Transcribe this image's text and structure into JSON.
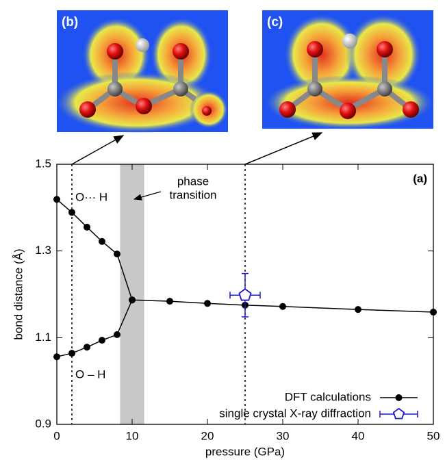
{
  "chart_data": {
    "type": "line",
    "xlabel": "pressure (GPa)",
    "ylabel": "bond distance (Å)",
    "xlim": [
      0,
      50
    ],
    "ylim": [
      0.9,
      1.5
    ],
    "xticks": [
      0,
      10,
      20,
      30,
      40,
      50
    ],
    "yticks": [
      0.9,
      1.1,
      1.3,
      1.5
    ],
    "series": [
      {
        "name": "DFT calculations",
        "color": "#000000",
        "x": [
          0,
          2,
          4,
          6,
          8,
          10,
          15,
          20,
          25,
          30,
          40,
          50
        ],
        "values": [
          1.419,
          1.389,
          1.355,
          1.322,
          1.293,
          1.187,
          1.184,
          1.179,
          1.175,
          1.172,
          1.165,
          1.159
        ]
      },
      {
        "color": "#000000",
        "x": [
          0,
          2,
          4,
          6,
          8,
          10
        ],
        "values": [
          1.056,
          1.064,
          1.078,
          1.094,
          1.107,
          1.187
        ]
      }
    ],
    "measurement": {
      "name": "single crystal X-ray diffraction",
      "color": "#1a1acc",
      "x": 25,
      "value": 1.198,
      "xerr": 2,
      "yerr": 0.05
    },
    "shaded_band": [
      8.4,
      11.6
    ],
    "vlines": [
      2,
      25
    ],
    "annotations": {
      "phase_transition": [
        "phase",
        "transition"
      ],
      "upper": "O··· H",
      "lower": "O – H",
      "panel": "(a)"
    },
    "insets": [
      "(b)",
      "(c)"
    ]
  }
}
